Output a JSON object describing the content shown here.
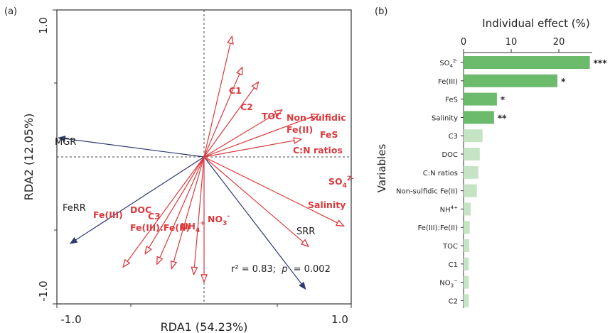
{
  "chart_data": [
    {
      "panel_label": "(a)",
      "type": "scatter",
      "subtype": "rda-biplot",
      "xlabel": "RDA1 (54.23%)",
      "ylabel": "RDA2 (12.05%)",
      "xlim": [
        -1.0,
        1.0
      ],
      "ylim": [
        -1.0,
        1.0
      ],
      "x_tick_labels": [
        "-1.0",
        "1.0"
      ],
      "y_tick_labels": [
        "-1.0",
        "1.0"
      ],
      "annotation": {
        "r2": "r² = 0.83;",
        "p_symbol": "p",
        "p_value": "= 0.002"
      },
      "colors": {
        "explanatory": "#d93a3f",
        "response": "#2f3a6e"
      },
      "response_arrows": [
        {
          "name": "MGR",
          "x": -0.99,
          "y": 0.13
        },
        {
          "name": "FeRR",
          "x": -0.91,
          "y": -0.59
        },
        {
          "name": "SRR",
          "x": 0.69,
          "y": -0.9
        }
      ],
      "explanatory_arrows": [
        {
          "name": "C1",
          "x": 0.19,
          "y": 0.82
        },
        {
          "name": "C2",
          "x": 0.26,
          "y": 0.61
        },
        {
          "name": "TOC",
          "x": 0.37,
          "y": 0.51
        },
        {
          "name": "Non-sulfidic Fe(II)",
          "x": 0.53,
          "y": 0.32
        },
        {
          "name": "FeS",
          "x": 0.78,
          "y": 0.29
        },
        {
          "name": "C:N ratios",
          "x": 0.66,
          "y": 0.12
        },
        {
          "name": "SO4 2-",
          "x": 0.95,
          "y": -0.47
        },
        {
          "name": "Salinity",
          "x": 0.71,
          "y": -0.61
        },
        {
          "name": "NO3-",
          "x": 0.0,
          "y": -0.85
        },
        {
          "name": "NH4+",
          "x": -0.07,
          "y": -0.8
        },
        {
          "name": "Fe(III):Fe(II)",
          "x": -0.22,
          "y": -0.76
        },
        {
          "name": "C3",
          "x": -0.32,
          "y": -0.73
        },
        {
          "name": "DOC",
          "x": -0.4,
          "y": -0.66
        },
        {
          "name": "Fe(III)",
          "x": -0.55,
          "y": -0.75
        }
      ],
      "labels": [
        {
          "id": "C1",
          "text": "C1"
        },
        {
          "id": "C2",
          "text": "C2"
        },
        {
          "id": "TOC",
          "text": "TOC"
        },
        {
          "id": "Non-sulfidic Fe(II)",
          "lines": [
            "Non-sulfidic",
            "Fe(II)"
          ]
        },
        {
          "id": "FeS",
          "text": "FeS"
        },
        {
          "id": "C:N ratios",
          "text": "C:N ratios"
        },
        {
          "id": "SO4 2-",
          "base": "SO",
          "sub": "4",
          "sup": "2-"
        },
        {
          "id": "Salinity",
          "text": "Salinity"
        },
        {
          "id": "NO3-",
          "base": "NO",
          "sub": "3",
          "sup": "-"
        },
        {
          "id": "NH4+",
          "base": "NH",
          "sub": "4",
          "sup": "+"
        },
        {
          "id": "Fe(III):Fe(II)",
          "text": "Fe(III):Fe(II)"
        },
        {
          "id": "C3",
          "text": "C3"
        },
        {
          "id": "DOC",
          "text": "DOC"
        },
        {
          "id": "Fe(III)",
          "text": "Fe(III)"
        },
        {
          "id": "MGR",
          "text": "MGR"
        },
        {
          "id": "FeRR",
          "text": "FeRR"
        },
        {
          "id": "SRR",
          "text": "SRR"
        }
      ]
    },
    {
      "panel_label": "(b)",
      "type": "bar",
      "orientation": "horizontal",
      "xlabel": "Individual effect (%)",
      "ylabel": "Variables",
      "xlim": [
        0,
        27
      ],
      "x_ticks": [
        0,
        10,
        20
      ],
      "colors": {
        "significant": "#6cba6b",
        "nonsignificant": "#c5e4c3"
      },
      "bars": [
        {
          "name": "SO4 2-",
          "base": "SO",
          "sub": "4",
          "sup": "2-",
          "value": 26.5,
          "sig": "***"
        },
        {
          "name": "Fe(III)",
          "value": 19.7,
          "sig": "*"
        },
        {
          "name": "FeS",
          "value": 7.0,
          "sig": "*"
        },
        {
          "name": "Salinity",
          "value": 6.4,
          "sig": "**"
        },
        {
          "name": "C3",
          "value": 4.0,
          "sig": ""
        },
        {
          "name": "DOC",
          "value": 3.4,
          "sig": ""
        },
        {
          "name": "C:N ratios",
          "value": 3.1,
          "sig": ""
        },
        {
          "name": "Non-sulfidic Fe(II)",
          "value": 2.8,
          "sig": ""
        },
        {
          "name": "NH4+",
          "base": "NH",
          "sub": "",
          "sup": "4+",
          "value": 1.5,
          "sig": ""
        },
        {
          "name": "Fe(III):Fe(II)",
          "value": 1.3,
          "sig": ""
        },
        {
          "name": "TOC",
          "value": 1.2,
          "sig": ""
        },
        {
          "name": "C1",
          "value": 1.1,
          "sig": ""
        },
        {
          "name": "NO3-",
          "base": "NO",
          "sub": "3",
          "sup": "−",
          "value": 1.1,
          "sig": ""
        },
        {
          "name": "C2",
          "value": 1.1,
          "sig": ""
        }
      ]
    }
  ]
}
